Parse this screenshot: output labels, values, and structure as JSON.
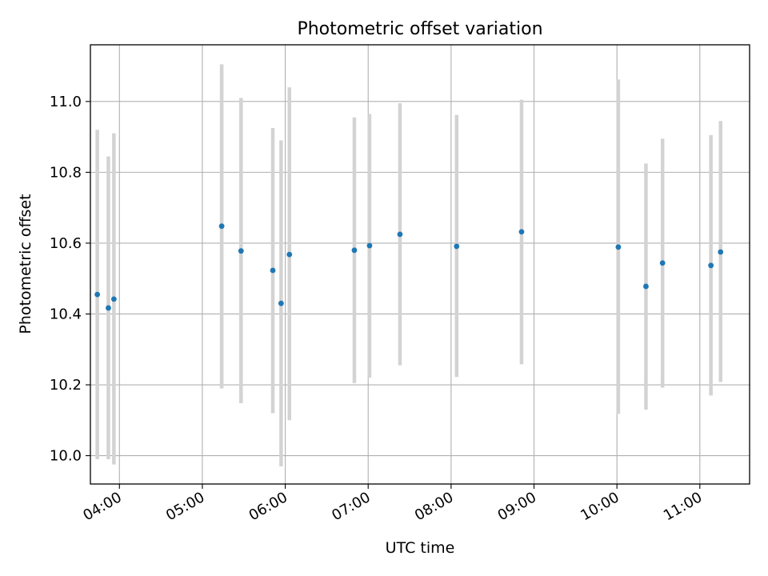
{
  "chart_data": {
    "type": "scatter",
    "title": "Photometric offset variation",
    "xlabel": "UTC time",
    "ylabel": "Photometric offset",
    "x_tick_labels": [
      "04:00",
      "05:00",
      "06:00",
      "07:00",
      "08:00",
      "09:00",
      "10:00",
      "11:00"
    ],
    "y_tick_labels": [
      "10.0",
      "10.2",
      "10.4",
      "10.6",
      "10.8",
      "11.0"
    ],
    "y_ticks": [
      10.0,
      10.2,
      10.4,
      10.6,
      10.8,
      11.0
    ],
    "xlim": [
      "03:39",
      "11:36"
    ],
    "ylim": [
      9.92,
      11.16
    ],
    "grid": true,
    "colors": {
      "marker": "#1f77b4",
      "errorbar": "#d3d3d3",
      "grid": "#b0b0b0"
    },
    "points": [
      {
        "x": "03:44",
        "y": 10.455,
        "ylow": 9.99,
        "yhigh": 10.92
      },
      {
        "x": "03:52",
        "y": 10.417,
        "ylow": 9.99,
        "yhigh": 10.845
      },
      {
        "x": "03:56",
        "y": 10.442,
        "ylow": 9.975,
        "yhigh": 10.91
      },
      {
        "x": "05:14",
        "y": 10.648,
        "ylow": 10.19,
        "yhigh": 11.105
      },
      {
        "x": "05:28",
        "y": 10.578,
        "ylow": 10.148,
        "yhigh": 11.01
      },
      {
        "x": "05:51",
        "y": 10.523,
        "ylow": 10.12,
        "yhigh": 10.925
      },
      {
        "x": "05:57",
        "y": 10.43,
        "ylow": 9.97,
        "yhigh": 10.89
      },
      {
        "x": "06:03",
        "y": 10.568,
        "ylow": 10.1,
        "yhigh": 11.04
      },
      {
        "x": "06:50",
        "y": 10.58,
        "ylow": 10.205,
        "yhigh": 10.955
      },
      {
        "x": "07:01",
        "y": 10.593,
        "ylow": 10.22,
        "yhigh": 10.965
      },
      {
        "x": "07:23",
        "y": 10.625,
        "ylow": 10.255,
        "yhigh": 10.995
      },
      {
        "x": "08:04",
        "y": 10.591,
        "ylow": 10.222,
        "yhigh": 10.962
      },
      {
        "x": "08:51",
        "y": 10.632,
        "ylow": 10.258,
        "yhigh": 11.005
      },
      {
        "x": "10:01",
        "y": 10.589,
        "ylow": 10.118,
        "yhigh": 11.062
      },
      {
        "x": "10:21",
        "y": 10.478,
        "ylow": 10.13,
        "yhigh": 10.825
      },
      {
        "x": "10:33",
        "y": 10.544,
        "ylow": 10.192,
        "yhigh": 10.895
      },
      {
        "x": "11:08",
        "y": 10.537,
        "ylow": 10.17,
        "yhigh": 10.905
      },
      {
        "x": "11:15",
        "y": 10.575,
        "ylow": 10.208,
        "yhigh": 10.945
      }
    ]
  }
}
